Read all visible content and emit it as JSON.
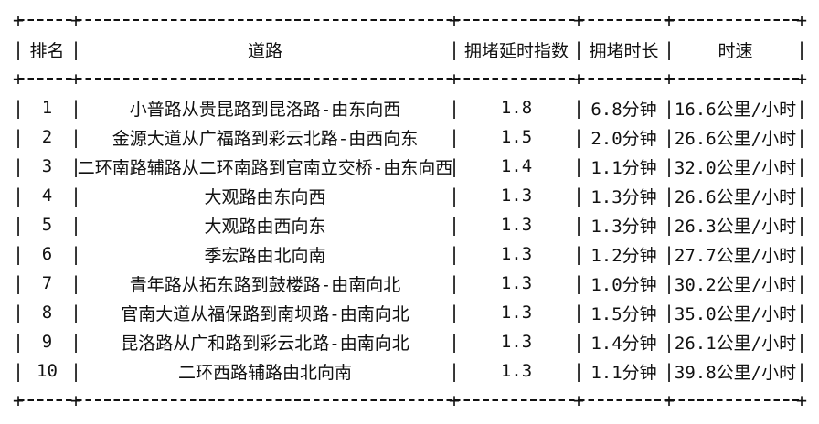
{
  "table": {
    "chrome": {
      "corner_char": "+",
      "vertical_char": "|",
      "text_color": "#111111",
      "background_color": "#ffffff"
    },
    "columns": [
      {
        "key": "rank",
        "label": "排名"
      },
      {
        "key": "road",
        "label": "道路"
      },
      {
        "key": "delay-index",
        "label": "拥堵延时指数"
      },
      {
        "key": "duration",
        "label": "拥堵时长"
      },
      {
        "key": "speed",
        "label": "时速"
      }
    ],
    "rows": [
      [
        "1",
        "小普路从贵昆路到昆洛路-由东向西",
        "1.8",
        "6.8分钟",
        "16.6公里/小时"
      ],
      [
        "2",
        "金源大道从广福路到彩云北路-由西向东",
        "1.5",
        "2.0分钟",
        "26.6公里/小时"
      ],
      [
        "3",
        "二环南路辅路从二环南路到官南立交桥-由东向西",
        "1.4",
        "1.1分钟",
        "32.0公里/小时"
      ],
      [
        "4",
        "大观路由东向西",
        "1.3",
        "1.3分钟",
        "26.6公里/小时"
      ],
      [
        "5",
        "大观路由西向东",
        "1.3",
        "1.3分钟",
        "26.3公里/小时"
      ],
      [
        "6",
        "季宏路由北向南",
        "1.3",
        "1.2分钟",
        "27.7公里/小时"
      ],
      [
        "7",
        "青年路从拓东路到鼓楼路-由南向北",
        "1.3",
        "1.0分钟",
        "30.2公里/小时"
      ],
      [
        "8",
        "官南大道从福保路到南坝路-由南向北",
        "1.3",
        "1.5分钟",
        "35.0公里/小时"
      ],
      [
        "9",
        "昆洛路从广和路到彩云北路-由南向北",
        "1.3",
        "1.4分钟",
        "26.1公里/小时"
      ],
      [
        "10",
        "二环西路辅路由北向南",
        "1.3",
        "1.1分钟",
        "39.8公里/小时"
      ]
    ]
  }
}
